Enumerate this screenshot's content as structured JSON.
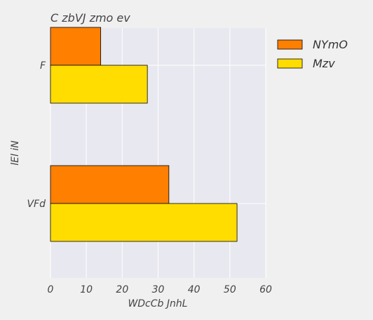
{
  "chart_data": {
    "type": "bar",
    "orientation": "horizontal",
    "title": "C zbVJ zmo ev",
    "xlabel": "WDcCb JnhL",
    "ylabel": "lEl iN",
    "categories": [
      "F",
      "VFd"
    ],
    "series": [
      {
        "name": "NYmO",
        "values": [
          14,
          33
        ],
        "color": "#ff7f00"
      },
      {
        "name": "Mzv",
        "values": [
          27,
          52
        ],
        "color": "#ffdd00"
      }
    ],
    "xlim": [
      0,
      60
    ],
    "xticks": [
      "0",
      "10",
      "20",
      "30",
      "40",
      "50",
      "60"
    ],
    "grid": true,
    "legend_position": "outside-right"
  }
}
